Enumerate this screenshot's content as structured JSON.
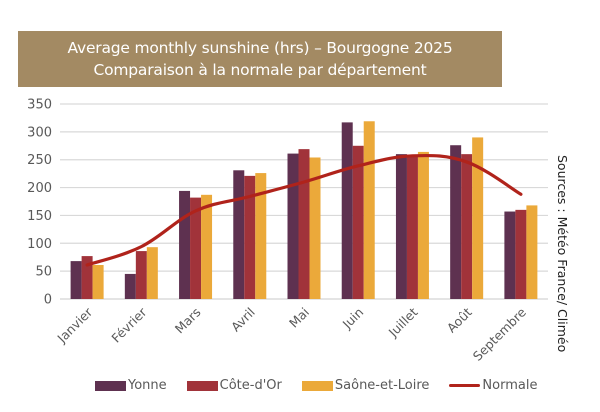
{
  "chart_data": {
    "type": "bar",
    "title": "Average monthly sunshine (hrs) – Bourgogne 2025",
    "subtitle": "Comparaison à la normale par département",
    "xlabel": "",
    "ylabel": "",
    "ylim": [
      0,
      350
    ],
    "yticks": [
      0,
      50,
      100,
      150,
      200,
      250,
      300,
      350
    ],
    "grid": true,
    "legend_position": "bottom",
    "source_annotation": "Sources : Météo France/ Climéo",
    "categories": [
      "Janvier",
      "Février",
      "Mars",
      "Avril",
      "Mai",
      "Juin",
      "Juillet",
      "Août",
      "Septembre"
    ],
    "series": [
      {
        "name": "Yonne",
        "type": "bar",
        "color": "#5e3150",
        "values": [
          68,
          45,
          194,
          231,
          261,
          317,
          260,
          276,
          157
        ]
      },
      {
        "name": "Côte-d'Or",
        "type": "bar",
        "color": "#a1333a",
        "values": [
          77,
          86,
          182,
          221,
          269,
          275,
          259,
          260,
          160
        ]
      },
      {
        "name": "Saône-et-Loire",
        "type": "bar",
        "color": "#eba93a",
        "values": [
          61,
          93,
          187,
          226,
          254,
          319,
          264,
          290,
          168
        ]
      },
      {
        "name": "Normale",
        "type": "line",
        "color": "#b0231b",
        "values": [
          61,
          94,
          158,
          184,
          210,
          239,
          257,
          246,
          188
        ]
      }
    ]
  }
}
